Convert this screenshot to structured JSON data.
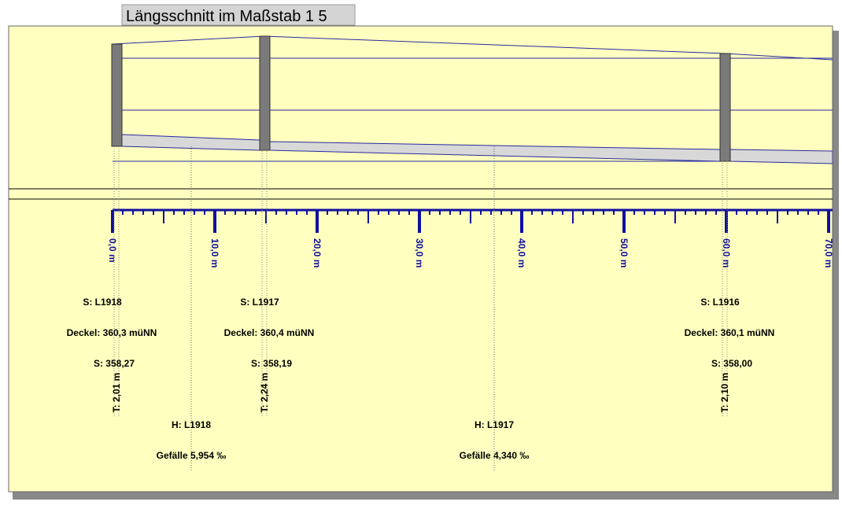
{
  "title": "Längsschnitt im Maßstab 1 5",
  "scale": {
    "labels": [
      "0,0 m",
      "10,0 m",
      "20,0 m",
      "30,0 m",
      "40,0 m",
      "50,0 m",
      "60,0 m",
      "70,0 m"
    ]
  },
  "manholes": [
    {
      "name": "S: L1918",
      "deckel": "Deckel: 360,3 müNN",
      "sohle": "S: 358,27",
      "depth": "T: 2,01 m"
    },
    {
      "name": "S: L1917",
      "deckel": "Deckel: 360,4 müNN",
      "sohle": "S: 358,19",
      "depth": "T: 2,24 m"
    },
    {
      "name": "S: L1916",
      "deckel": "Deckel: 360,1 müNN",
      "sohle": "S: 358,00",
      "depth": "T: 2,10 m"
    }
  ],
  "sections": [
    {
      "name": "H: L1918",
      "slope": "Gefälle 5,954 ‰"
    },
    {
      "name": "H: L1917",
      "slope": "Gefälle 4,340 ‰"
    }
  ]
}
